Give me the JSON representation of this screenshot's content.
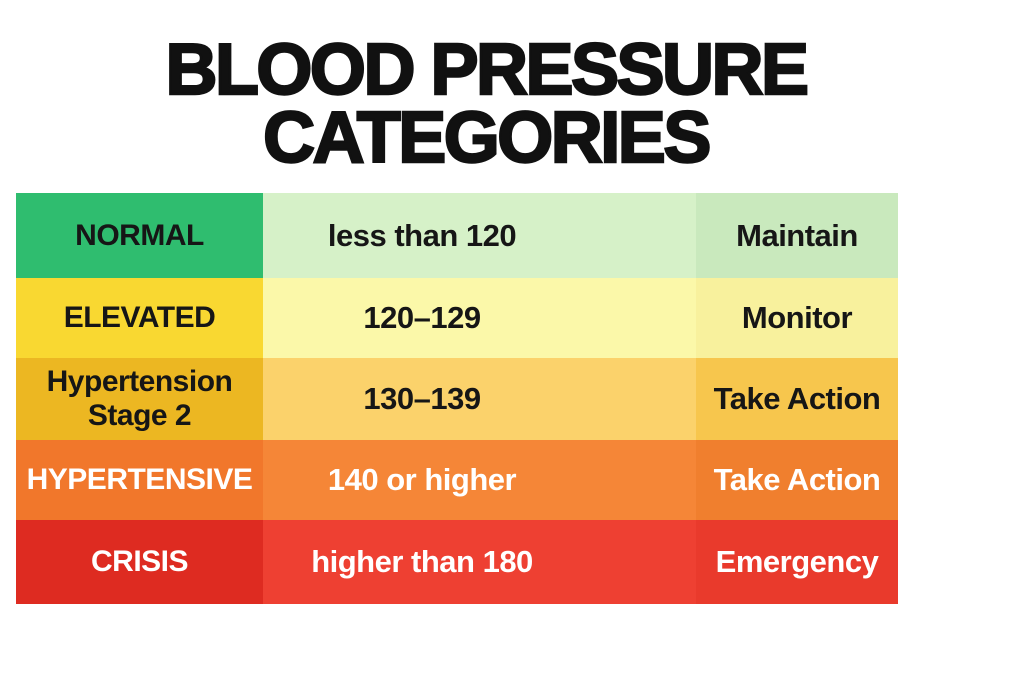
{
  "title": {
    "line1": "BLOOD PRESSURE",
    "line2": "CATEGORIES"
  },
  "table": {
    "rows": [
      {
        "category": "NORMAL",
        "range": "less than 120",
        "action": "Maintain",
        "category_bg": "#2fbd6f",
        "range_bg": "#d6f1c8",
        "action_bg": "#c9e9bd",
        "text_color": "#161616"
      },
      {
        "category": "ELEVATED",
        "range": "120–129",
        "action": "Monitor",
        "category_bg": "#f9d831",
        "range_bg": "#fbf8a9",
        "action_bg": "#f8f19d",
        "text_color": "#161616"
      },
      {
        "category": "Hypertension Stage 2",
        "range": "130–139",
        "action": "Take Action",
        "category_bg": "#ecb722",
        "range_bg": "#fbd26b",
        "action_bg": "#f7c64d",
        "text_color": "#161616"
      },
      {
        "category": "HYPERTENSIVE",
        "range": "140 or higher",
        "action": "Take Action",
        "category_bg": "#f1772b",
        "range_bg": "#f58637",
        "action_bg": "#f07f2e",
        "text_color": "#ffffff"
      },
      {
        "category": "CRISIS",
        "range": "higher than 180",
        "action": "Emergency",
        "category_bg": "#de2b21",
        "range_bg": "#ee4032",
        "action_bg": "#e93a2c",
        "text_color": "#ffffff"
      }
    ]
  },
  "chart_data": {
    "type": "table",
    "title": "BLOOD PRESSURE CATEGORIES",
    "rows": [
      [
        "NORMAL",
        "less than 120",
        "Maintain"
      ],
      [
        "ELEVATED",
        "120–129",
        "Monitor"
      ],
      [
        "Hypertension Stage 2",
        "130–139",
        "Take Action"
      ],
      [
        "HYPERTENSIVE",
        "140 or higher",
        "Take Action"
      ],
      [
        "CRISIS",
        "higher than 180",
        "Emergency"
      ]
    ],
    "row_colors": [
      "#2fbd6f",
      "#f9d831",
      "#ecb722",
      "#f1772b",
      "#de2b21"
    ],
    "legend_position": "none",
    "grid": false
  }
}
